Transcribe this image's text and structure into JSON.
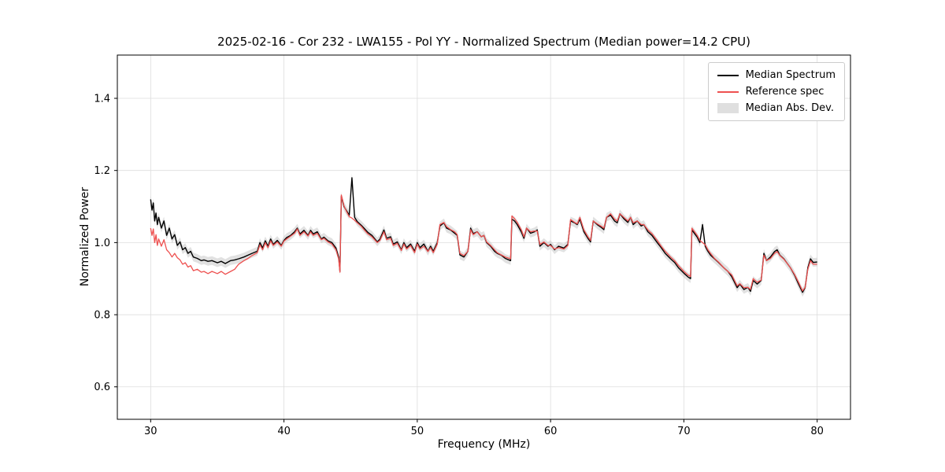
{
  "chart_data": {
    "type": "line",
    "title": "2025-02-16 - Cor 232 - LWA155 - Pol YY - Normalized Spectrum (Median power=14.2 CPU)",
    "xlabel": "Frequency (MHz)",
    "ylabel": "Normalized Power",
    "xlim": [
      27.5,
      82.5
    ],
    "ylim": [
      0.51,
      1.52
    ],
    "xticks": [
      30,
      40,
      50,
      60,
      70,
      80
    ],
    "yticks": [
      0.6,
      0.8,
      1.0,
      1.2,
      1.4
    ],
    "grid": true,
    "legend_position": "upper right",
    "legend": [
      {
        "label": "Median Spectrum",
        "type": "line",
        "color": "#000000"
      },
      {
        "label": "Reference spec",
        "type": "line",
        "color": "#ee5150"
      },
      {
        "label": "Median Abs. Dev.",
        "type": "patch",
        "color": "#c9c9c9"
      }
    ],
    "colors": {
      "grid": "#dddddd",
      "frame": "#000000",
      "background": "#ffffff"
    },
    "x": [
      30.0,
      30.1,
      30.2,
      30.3,
      30.4,
      30.5,
      30.6,
      30.8,
      31.0,
      31.2,
      31.4,
      31.6,
      31.8,
      32.0,
      32.2,
      32.4,
      32.6,
      32.8,
      33.0,
      33.2,
      33.5,
      33.8,
      34.0,
      34.3,
      34.6,
      35.0,
      35.3,
      35.6,
      36.0,
      36.3,
      36.6,
      37.0,
      37.3,
      37.6,
      38.0,
      38.2,
      38.4,
      38.6,
      38.8,
      39.0,
      39.2,
      39.5,
      39.8,
      40.0,
      40.2,
      40.5,
      40.8,
      41.0,
      41.2,
      41.5,
      41.8,
      42.0,
      42.2,
      42.5,
      42.8,
      43.0,
      43.3,
      43.6,
      43.9,
      44.1,
      44.2,
      44.3,
      44.5,
      44.7,
      44.9,
      45.1,
      45.3,
      45.5,
      45.8,
      46.0,
      46.3,
      46.6,
      47.0,
      47.2,
      47.5,
      47.7,
      48.0,
      48.2,
      48.5,
      48.8,
      49.0,
      49.2,
      49.5,
      49.8,
      50.0,
      50.2,
      50.5,
      50.8,
      51.0,
      51.2,
      51.5,
      51.7,
      52.0,
      52.2,
      52.5,
      52.8,
      53.0,
      53.2,
      53.5,
      53.8,
      54.0,
      54.2,
      54.5,
      54.8,
      55.0,
      55.2,
      55.5,
      55.8,
      56.0,
      56.3,
      56.6,
      57.0,
      57.1,
      57.3,
      57.5,
      57.8,
      58.0,
      58.2,
      58.5,
      58.8,
      59.0,
      59.2,
      59.5,
      59.8,
      60.0,
      60.3,
      60.6,
      61.0,
      61.3,
      61.5,
      61.8,
      62.0,
      62.2,
      62.5,
      62.8,
      63.0,
      63.2,
      63.5,
      63.8,
      64.0,
      64.2,
      64.5,
      64.8,
      65.0,
      65.2,
      65.5,
      65.8,
      66.0,
      66.2,
      66.5,
      66.8,
      67.0,
      67.3,
      67.6,
      68.0,
      68.3,
      68.6,
      69.0,
      69.3,
      69.6,
      70.0,
      70.3,
      70.5,
      70.6,
      70.8,
      71.0,
      71.2,
      71.4,
      71.6,
      71.8,
      72.0,
      72.3,
      72.6,
      73.0,
      73.3,
      73.6,
      74.0,
      74.2,
      74.5,
      74.8,
      75.0,
      75.2,
      75.5,
      75.8,
      76.0,
      76.2,
      76.5,
      76.8,
      77.0,
      77.2,
      77.5,
      77.8,
      78.0,
      78.3,
      78.6,
      78.9,
      79.1,
      79.3,
      79.5,
      79.7,
      80.0
    ],
    "series": [
      {
        "name": "Median Spectrum",
        "color": "#000000",
        "values": [
          1.12,
          1.09,
          1.11,
          1.06,
          1.082,
          1.05,
          1.07,
          1.04,
          1.06,
          1.02,
          1.04,
          1.01,
          1.022,
          0.992,
          1.002,
          0.98,
          0.986,
          0.97,
          0.976,
          0.96,
          0.956,
          0.95,
          0.952,
          0.948,
          0.95,
          0.944,
          0.948,
          0.942,
          0.95,
          0.952,
          0.955,
          0.96,
          0.965,
          0.97,
          0.976,
          1.0,
          0.985,
          1.005,
          0.99,
          1.01,
          0.995,
          1.006,
          0.992,
          1.006,
          1.014,
          1.02,
          1.03,
          1.04,
          1.024,
          1.034,
          1.02,
          1.034,
          1.024,
          1.03,
          1.01,
          1.015,
          1.005,
          1.0,
          0.985,
          0.96,
          0.92,
          1.128,
          1.1,
          1.088,
          1.076,
          1.18,
          1.07,
          1.058,
          1.048,
          1.04,
          1.028,
          1.02,
          1.002,
          1.01,
          1.035,
          1.012,
          1.016,
          0.996,
          1.002,
          0.98,
          1.0,
          0.986,
          0.996,
          0.976,
          1.0,
          0.986,
          0.996,
          0.976,
          0.99,
          0.976,
          1.0,
          1.046,
          1.055,
          1.04,
          1.035,
          1.026,
          1.02,
          0.966,
          0.96,
          0.976,
          1.04,
          1.025,
          1.03,
          1.016,
          1.02,
          1.0,
          0.99,
          0.976,
          0.97,
          0.965,
          0.956,
          0.95,
          1.065,
          1.06,
          1.05,
          1.03,
          1.012,
          1.04,
          1.026,
          1.03,
          1.035,
          0.99,
          1.0,
          0.99,
          0.995,
          0.98,
          0.99,
          0.985,
          0.995,
          1.06,
          1.055,
          1.05,
          1.065,
          1.03,
          1.012,
          1.002,
          1.06,
          1.05,
          1.042,
          1.036,
          1.07,
          1.076,
          1.06,
          1.055,
          1.08,
          1.066,
          1.056,
          1.07,
          1.05,
          1.06,
          1.046,
          1.05,
          1.03,
          1.02,
          1.0,
          0.986,
          0.97,
          0.955,
          0.945,
          0.93,
          0.915,
          0.905,
          0.9,
          1.035,
          1.025,
          1.015,
          1.0,
          1.05,
          0.99,
          0.976,
          0.965,
          0.955,
          0.945,
          0.93,
          0.92,
          0.905,
          0.875,
          0.885,
          0.87,
          0.876,
          0.865,
          0.895,
          0.885,
          0.895,
          0.97,
          0.95,
          0.96,
          0.975,
          0.98,
          0.965,
          0.955,
          0.94,
          0.93,
          0.91,
          0.885,
          0.862,
          0.875,
          0.93,
          0.955,
          0.945,
          0.946
        ]
      },
      {
        "name": "Reference spec",
        "color": "#ee5150",
        "values": [
          1.04,
          1.02,
          1.038,
          1.0,
          1.022,
          0.992,
          1.01,
          0.99,
          1.008,
          0.98,
          0.972,
          0.96,
          0.97,
          0.958,
          0.952,
          0.94,
          0.944,
          0.932,
          0.936,
          0.922,
          0.926,
          0.918,
          0.92,
          0.914,
          0.92,
          0.914,
          0.92,
          0.912,
          0.92,
          0.926,
          0.94,
          0.95,
          0.956,
          0.964,
          0.972,
          0.994,
          0.98,
          1.0,
          0.986,
          1.005,
          0.992,
          1.002,
          0.99,
          1.004,
          1.01,
          1.018,
          1.026,
          1.038,
          1.02,
          1.03,
          1.018,
          1.03,
          1.02,
          1.026,
          1.008,
          1.012,
          1.002,
          0.996,
          0.98,
          0.955,
          0.918,
          1.132,
          1.102,
          1.086,
          1.072,
          1.068,
          1.062,
          1.055,
          1.045,
          1.036,
          1.024,
          1.016,
          1.0,
          1.006,
          1.03,
          1.008,
          1.012,
          0.992,
          0.998,
          0.978,
          0.996,
          0.982,
          0.992,
          0.972,
          0.996,
          0.982,
          0.99,
          0.975,
          0.986,
          0.972,
          0.996,
          1.05,
          1.056,
          1.044,
          1.036,
          1.03,
          1.022,
          0.97,
          0.964,
          0.976,
          1.036,
          1.022,
          1.03,
          1.016,
          1.02,
          1.002,
          0.992,
          0.98,
          0.972,
          0.966,
          0.96,
          0.955,
          1.074,
          1.066,
          1.056,
          1.036,
          1.016,
          1.04,
          1.03,
          1.032,
          1.032,
          0.995,
          1.002,
          0.992,
          0.992,
          0.982,
          0.986,
          0.982,
          0.992,
          1.064,
          1.056,
          1.052,
          1.07,
          1.035,
          1.016,
          1.006,
          1.06,
          1.052,
          1.045,
          1.04,
          1.07,
          1.08,
          1.065,
          1.06,
          1.08,
          1.07,
          1.06,
          1.07,
          1.055,
          1.06,
          1.05,
          1.05,
          1.035,
          1.025,
          1.006,
          0.99,
          0.976,
          0.96,
          0.95,
          0.936,
          0.92,
          0.91,
          0.906,
          1.04,
          1.03,
          1.02,
          1.006,
          1.0,
          0.994,
          0.98,
          0.97,
          0.956,
          0.946,
          0.93,
          0.92,
          0.91,
          0.88,
          0.886,
          0.875,
          0.876,
          0.87,
          0.9,
          0.89,
          0.896,
          0.965,
          0.95,
          0.956,
          0.97,
          0.975,
          0.964,
          0.954,
          0.94,
          0.93,
          0.912,
          0.89,
          0.866,
          0.876,
          0.926,
          0.95,
          0.94,
          0.94
        ]
      },
      {
        "name": "Median Abs. Dev.",
        "color": "#c9c9c9",
        "band_halfwidth": 0.012
      }
    ]
  }
}
